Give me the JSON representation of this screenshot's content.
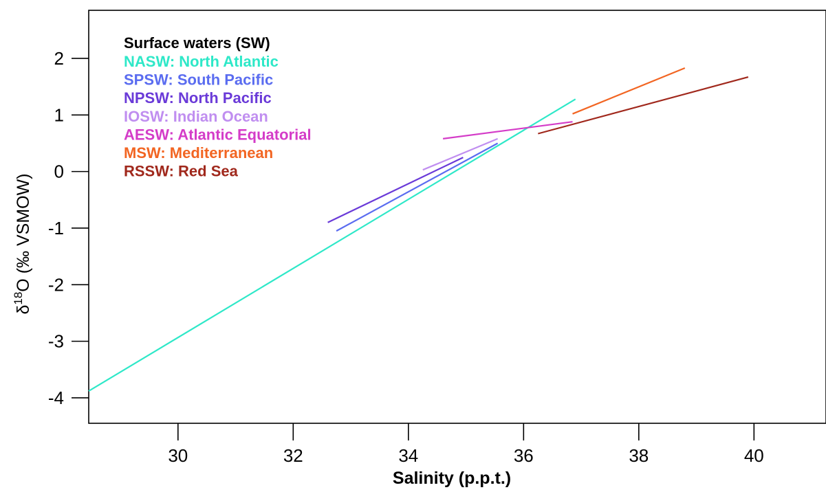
{
  "chart_data": {
    "type": "line",
    "xlabel": "Salinity (p.p.t.)",
    "ylabel_prefix": "δ",
    "ylabel_superscript": "18",
    "ylabel_main": "O (‰ VSMOW)",
    "xlim": [
      28.45,
      41.25
    ],
    "ylim": [
      -4.45,
      2.85
    ],
    "x_ticks": [
      30,
      32,
      34,
      36,
      38,
      40
    ],
    "y_ticks": [
      -4,
      -3,
      -2,
      -1,
      0,
      1,
      2
    ],
    "legend_title": "Surface waters (SW)",
    "legend_placement": "top-left",
    "grid": false,
    "series": [
      {
        "name": "NASW: North Atlantic",
        "color": "#2ee8c8",
        "points": [
          [
            28.45,
            -3.88
          ],
          [
            36.9,
            1.28
          ]
        ]
      },
      {
        "name": "SPSW: South Pacific",
        "color": "#5a6cf0",
        "points": [
          [
            32.75,
            -1.05
          ],
          [
            35.55,
            0.5
          ]
        ]
      },
      {
        "name": "NPSW: North Pacific",
        "color": "#6a3ad8",
        "points": [
          [
            32.6,
            -0.9
          ],
          [
            34.95,
            0.25
          ]
        ]
      },
      {
        "name": "IOSW: Indian Ocean",
        "color": "#c08ef0",
        "points": [
          [
            34.25,
            0.03
          ],
          [
            35.55,
            0.58
          ]
        ]
      },
      {
        "name": "AESW: Atlantic Equatorial",
        "color": "#d43cc8",
        "points": [
          [
            34.6,
            0.58
          ],
          [
            36.85,
            0.88
          ]
        ]
      },
      {
        "name": "MSW: Mediterranean",
        "color": "#f26522",
        "points": [
          [
            36.85,
            1.02
          ],
          [
            38.8,
            1.83
          ]
        ]
      },
      {
        "name": "RSSW: Red Sea",
        "color": "#a0281c",
        "points": [
          [
            36.25,
            0.67
          ],
          [
            39.9,
            1.67
          ]
        ]
      }
    ]
  }
}
